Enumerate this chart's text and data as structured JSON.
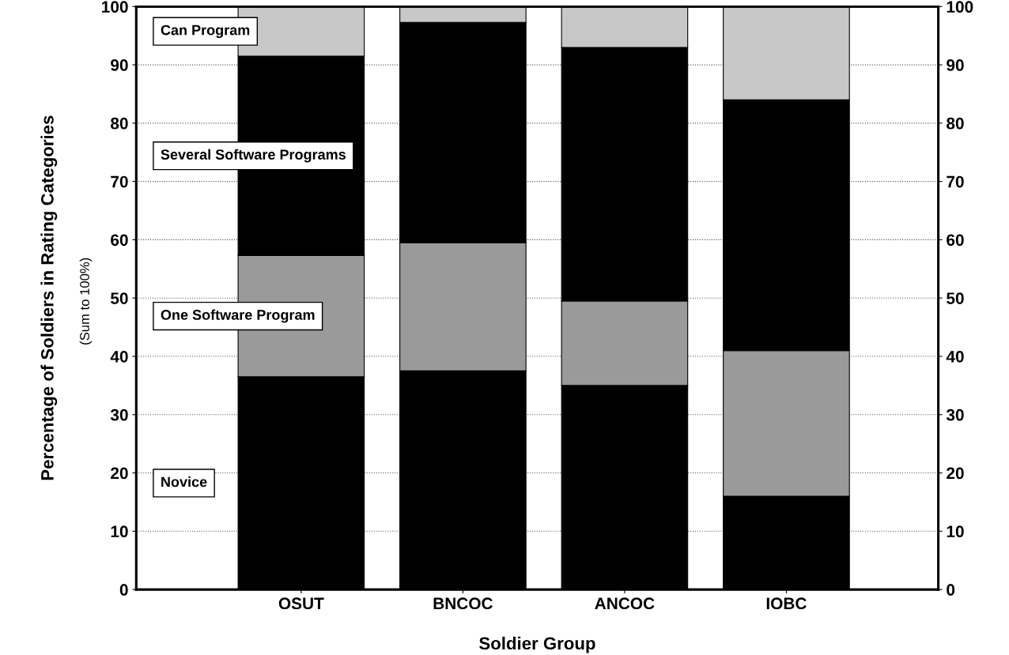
{
  "chart_data": {
    "type": "bar",
    "stacked": true,
    "xlabel": "Soldier Group",
    "ylabel": "Percentage of Soldiers in Rating Categories",
    "annotations": [
      "(Sum to 100%)"
    ],
    "categories": [
      "OSUT",
      "BNCOC",
      "ANCOC",
      "IOBC"
    ],
    "series": [
      {
        "name": "Novice",
        "color": "#000000",
        "values": [
          36.5,
          37.5,
          35,
          16
        ]
      },
      {
        "name": "One Software Program",
        "color": "#9a9a9a",
        "values": [
          20.8,
          22,
          14.5,
          25
        ]
      },
      {
        "name": "Several Software Programs",
        "color": "#000000",
        "values": [
          34.2,
          37.8,
          43.5,
          43
        ]
      },
      {
        "name": "Can Program",
        "color": "#c8c8c8",
        "values": [
          8.5,
          2.7,
          7,
          16
        ]
      }
    ],
    "ylim": [
      0,
      100
    ],
    "yticks": [
      0,
      10,
      20,
      30,
      40,
      50,
      60,
      70,
      80,
      90,
      100
    ],
    "y2lim": [
      0,
      100
    ],
    "y2ticks": [
      0,
      10,
      20,
      30,
      40,
      50,
      60,
      70,
      80,
      90,
      100
    ],
    "grid": "y",
    "legend": false
  }
}
